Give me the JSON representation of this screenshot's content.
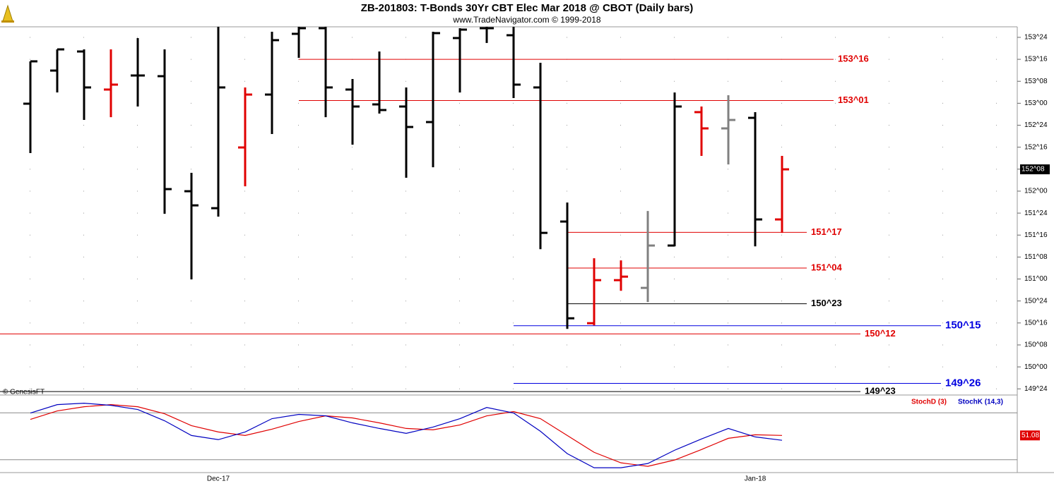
{
  "chart_data": [
    {
      "type": "ohlc",
      "title": "ZB-201803:  T-Bonds 30Yr CBT Elec Mar 2018 @ CBOT  (Daily bars)",
      "subtitle": "www.TradeNavigator.com © 1999-2018",
      "annotation": "© GenesisFT",
      "categories": [
        null,
        null,
        null,
        null,
        null,
        null,
        null,
        "Dec-17",
        null,
        null,
        null,
        null,
        null,
        null,
        null,
        null,
        null,
        null,
        null,
        null,
        null,
        null,
        null,
        null,
        null,
        null,
        null,
        "Jan-18",
        null
      ],
      "open": [
        152.995,
        153.372,
        153.589,
        153.156,
        153.316,
        153.308,
        151.999,
        151.806,
        152.497,
        153.099,
        153.79,
        153.854,
        153.156,
        152.987,
        152.963,
        152.786,
        153.742,
        153.854,
        153.774,
        153.18,
        151.654,
        150.497,
        150.987,
        150.899,
        151.381,
        152.899,
        152.714,
        152.834,
        151.678
      ],
      "high": [
        153.477,
        153.613,
        153.613,
        153.613,
        153.742,
        153.613,
        152.208,
        153.87,
        153.18,
        153.814,
        153.87,
        153.87,
        153.276,
        153.589,
        153.18,
        153.814,
        153.854,
        153.87,
        153.87,
        153.461,
        151.87,
        151.236,
        151.212,
        151.774,
        153.123,
        152.963,
        153.091,
        152.899,
        152.401
      ],
      "low": [
        152.433,
        153.123,
        152.81,
        152.842,
        152.963,
        151.742,
        150.995,
        151.71,
        152.055,
        152.65,
        153.517,
        152.842,
        152.529,
        152.883,
        152.152,
        152.272,
        153.123,
        153.686,
        153.059,
        151.34,
        150.433,
        150.473,
        150.866,
        150.738,
        151.372,
        152.401,
        152.304,
        151.372,
        151.525
      ],
      "close": [
        153.477,
        153.613,
        153.18,
        153.212,
        153.316,
        152.023,
        151.838,
        153.18,
        153.099,
        153.718,
        153.854,
        153.18,
        152.963,
        152.923,
        152.73,
        153.798,
        153.838,
        153.854,
        153.212,
        151.525,
        150.553,
        150.987,
        151.027,
        151.381,
        152.963,
        152.714,
        152.81,
        151.678,
        152.248
      ],
      "colors": [
        "#000",
        "#000",
        "#000",
        "#e00000",
        "#000",
        "#000",
        "#000",
        "#000",
        "#e00000",
        "#000",
        "#000",
        "#000",
        "#000",
        "#000",
        "#000",
        "#000",
        "#000",
        "#000",
        "#000",
        "#000",
        "#000",
        "#e00000",
        "#e00000",
        "#808080",
        "#000",
        "#e00000",
        "#808080",
        "#000",
        "#e00000"
      ],
      "last_price_label": "152^08",
      "levels": [
        {
          "value": 153.5,
          "label": "153^16",
          "color": "#e00000"
        },
        {
          "value": 153.03125,
          "label": "153^01",
          "color": "#e00000"
        },
        {
          "value": 151.53125,
          "label": "151^17",
          "color": "#e00000"
        },
        {
          "value": 151.125,
          "label": "151^04",
          "color": "#e00000"
        },
        {
          "value": 150.71875,
          "label": "150^23",
          "color": "#000000"
        },
        {
          "value": 150.46875,
          "label": "150^15",
          "color": "#0000e0"
        },
        {
          "value": 150.375,
          "label": "150^12",
          "color": "#e00000"
        },
        {
          "value": 149.8125,
          "label": "149^26",
          "color": "#0000e0"
        },
        {
          "value": 149.71875,
          "label": "149^23",
          "color": "#000000"
        }
      ],
      "ylim": [
        149.68,
        153.87
      ],
      "yticks": [
        {
          "value": 153.75,
          "label": "153^24"
        },
        {
          "value": 153.5,
          "label": "153^16"
        },
        {
          "value": 153.25,
          "label": "153^08"
        },
        {
          "value": 153.0,
          "label": "153^00"
        },
        {
          "value": 152.75,
          "label": "152^24"
        },
        {
          "value": 152.5,
          "label": "152^16"
        },
        {
          "value": 152.25,
          "label": "152^08"
        },
        {
          "value": 152.0,
          "label": "152^00"
        },
        {
          "value": 151.75,
          "label": "151^24"
        },
        {
          "value": 151.5,
          "label": "151^16"
        },
        {
          "value": 151.25,
          "label": "151^08"
        },
        {
          "value": 151.0,
          "label": "151^00"
        },
        {
          "value": 150.75,
          "label": "150^24"
        },
        {
          "value": 150.5,
          "label": "150^16"
        },
        {
          "value": 150.25,
          "label": "150^08"
        },
        {
          "value": 150.0,
          "label": "150^00"
        },
        {
          "value": 149.75,
          "label": "149^24"
        }
      ],
      "grid": true
    },
    {
      "type": "line",
      "series": [
        {
          "name": "StochD (3)",
          "color": "#e00000",
          "values": [
            71.6,
            82.4,
            87.7,
            90.4,
            87.7,
            78.8,
            63.6,
            55.5,
            51.0,
            59.1,
            68.9,
            76.1,
            73.4,
            67.1,
            60.0,
            58.2,
            64.5,
            76.1,
            81.5,
            72.5,
            51.0,
            29.5,
            16.1,
            11.6,
            19.7,
            33.1,
            47.4,
            51.9,
            51.08
          ],
          "last_label": "51.08"
        },
        {
          "name": "StochK (14,3)",
          "color": "#0000c0",
          "values": [
            79.7,
            90.4,
            92.2,
            89.5,
            84.2,
            69.8,
            51.0,
            45.7,
            55.5,
            72.5,
            77.9,
            76.1,
            67.1,
            60.0,
            53.7,
            61.8,
            72.5,
            86.8,
            79.7,
            56.4,
            27.8,
            9.8,
            9.8,
            15.2,
            32.2,
            46.6,
            60.0,
            49.2,
            44.9
          ]
        }
      ],
      "ylim": [
        0,
        100
      ],
      "levels": [
        80,
        20
      ]
    }
  ]
}
